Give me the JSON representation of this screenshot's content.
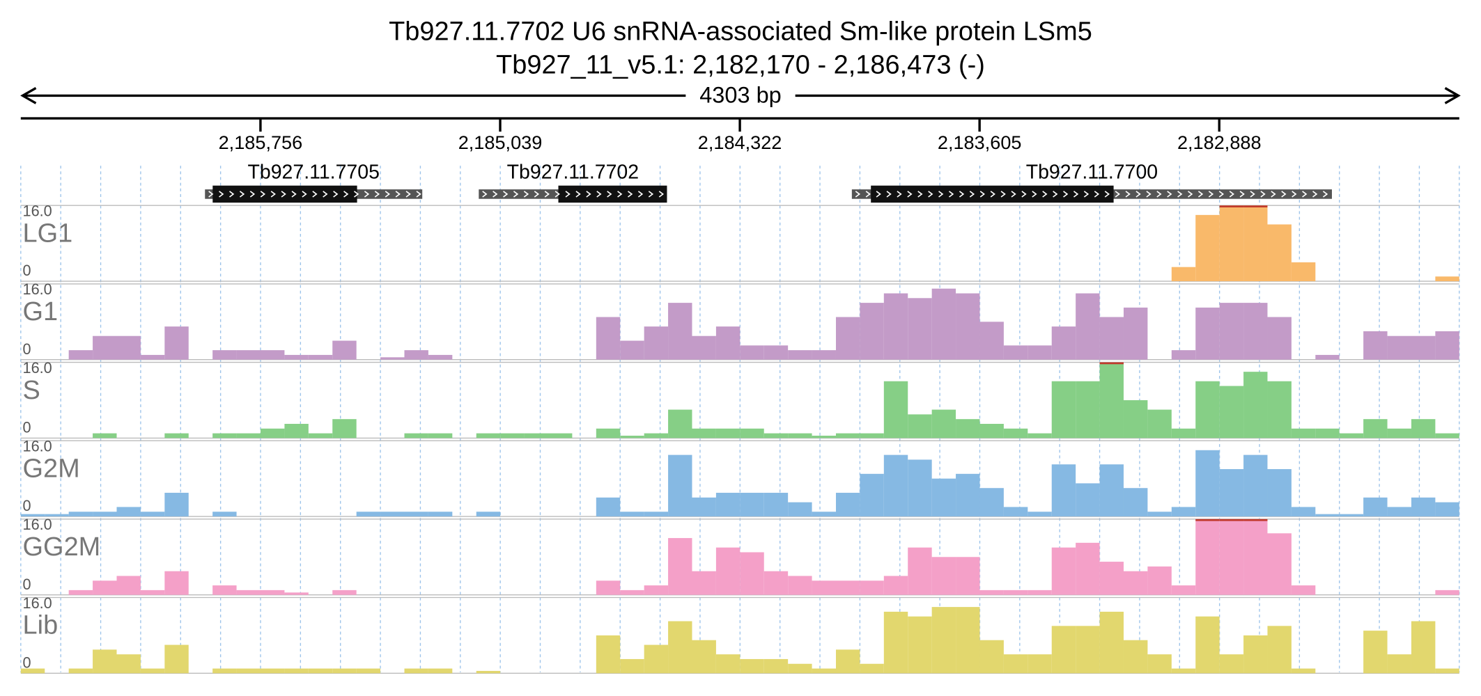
{
  "chart_data": {
    "type": "coverage",
    "title": "Tb927.11.7702  U6 snRNA-associated Sm-like protein LSm5",
    "subtitle": "Tb927_11_v5.1: 2,182,170 - 2,186,473 (-)",
    "span_label": "4303 bp",
    "xlim": [
      2186473,
      2182170
    ],
    "xticks": [
      {
        "value": 2185756,
        "label": "2,185,756"
      },
      {
        "value": 2185039,
        "label": "2,185,039"
      },
      {
        "value": 2184322,
        "label": "2,184,322"
      },
      {
        "value": 2183605,
        "label": "2,183,605"
      },
      {
        "value": 2182888,
        "label": "2,182,888"
      }
    ],
    "clip_color": "#c0392b",
    "genes": [
      {
        "name": "Tb927.11.7705",
        "start": 2185922,
        "end": 2185272,
        "thick_start": 2185899,
        "thick_end": 2185467
      },
      {
        "name": "Tb927.11.7702",
        "start": 2185103,
        "end": 2184540,
        "thick_start": 2184865,
        "thick_end": 2184540
      },
      {
        "name": "Tb927.11.7700",
        "start": 2183987,
        "end": 2182551,
        "thick_start": 2183930,
        "thick_end": 2183204
      }
    ],
    "ylim": [
      0,
      16
    ],
    "yticks": [
      0,
      {
        "value": 16,
        "label": "16.0"
      }
    ],
    "series": [
      {
        "name": "LG1",
        "color": "#f9b96a",
        "values": [
          0,
          0,
          0,
          0,
          0,
          0,
          0,
          0,
          0,
          0,
          0,
          0,
          0,
          0,
          0,
          0,
          0,
          0,
          0,
          0,
          0,
          0,
          0,
          0,
          0,
          0,
          0,
          0,
          0,
          0,
          0,
          0,
          0,
          0,
          0,
          0,
          0,
          0,
          0,
          0,
          0,
          0,
          0,
          0,
          0,
          0,
          0,
          0,
          3,
          14,
          16,
          16,
          12,
          4,
          0,
          0,
          0,
          0,
          0,
          1
        ]
      },
      {
        "name": "G1",
        "color": "#c39bc8",
        "values": [
          0,
          0,
          2,
          5,
          5,
          1,
          7,
          0,
          2,
          2,
          2,
          1,
          1,
          4,
          0,
          0.5,
          2,
          1,
          0,
          0,
          0,
          0,
          0,
          0,
          9,
          4,
          7,
          12,
          5,
          7,
          3,
          3,
          2,
          2,
          9,
          12,
          14,
          13,
          15,
          14,
          8,
          3,
          3,
          7,
          14,
          9,
          11,
          0,
          2,
          11,
          12,
          12,
          9,
          0,
          1,
          0,
          6,
          5,
          5,
          6
        ]
      },
      {
        "name": "S",
        "color": "#86cf86",
        "values": [
          0,
          0,
          0,
          1,
          0,
          0,
          1,
          0,
          1,
          1,
          2,
          3,
          1,
          4,
          0,
          0,
          1,
          1,
          0,
          1,
          1,
          1,
          1,
          0,
          2,
          0.5,
          1,
          6,
          2,
          2,
          2,
          1,
          1,
          0.5,
          1,
          1,
          12,
          5,
          6,
          4,
          3,
          2,
          1,
          12,
          12,
          16,
          8,
          6,
          2,
          12,
          11,
          14,
          12,
          2,
          2,
          1,
          4,
          2,
          4,
          1
        ]
      },
      {
        "name": "G2M",
        "color": "#86b9e3",
        "values": [
          0.5,
          0.5,
          1,
          1,
          2,
          1,
          5,
          0,
          1,
          0,
          0,
          0,
          0,
          0,
          1,
          1,
          1,
          1,
          0,
          1,
          0,
          0,
          0,
          0,
          4,
          1,
          1,
          13,
          4,
          5,
          5,
          5,
          3,
          1,
          5,
          9,
          13,
          12,
          8,
          9,
          6,
          2,
          1,
          11,
          7,
          11,
          6,
          1,
          2,
          14,
          10,
          13,
          10,
          2,
          0.5,
          0.5,
          4,
          2,
          4,
          3
        ]
      },
      {
        "name": "GG2M",
        "color": "#f4a0c8",
        "values": [
          0,
          0,
          1,
          3,
          4,
          1,
          5,
          0,
          2,
          1,
          1,
          0.5,
          0,
          1,
          0,
          0,
          0,
          0,
          0,
          0,
          0,
          0,
          0,
          0,
          3,
          1,
          2,
          12,
          5,
          10,
          9,
          5,
          4,
          3,
          3,
          3,
          4,
          10,
          8,
          8,
          1,
          1,
          1,
          10,
          11,
          7,
          5,
          6,
          2,
          16,
          16,
          16,
          13,
          2,
          0,
          0,
          0,
          0,
          0,
          1
        ]
      },
      {
        "name": "Lib",
        "color": "#e2d76e",
        "values": [
          1,
          0,
          1,
          5,
          4,
          1,
          6,
          0,
          1,
          1,
          1,
          1,
          1,
          1,
          1,
          0,
          1,
          1,
          0,
          0.5,
          0,
          0,
          0,
          0,
          8,
          3,
          6,
          11,
          7,
          4,
          3,
          3,
          2,
          1,
          5,
          2,
          13,
          12,
          14,
          14,
          7,
          4,
          4,
          10,
          10,
          13,
          7,
          4,
          1,
          12,
          4,
          8,
          10,
          1,
          0,
          0,
          9,
          4,
          11,
          1
        ]
      }
    ]
  }
}
